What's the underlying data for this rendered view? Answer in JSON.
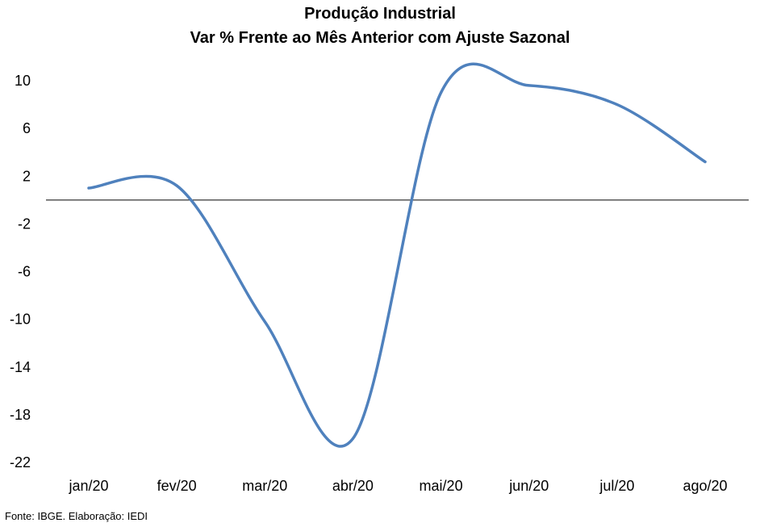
{
  "chart_data": {
    "type": "line",
    "title": "Produção Industrial",
    "subtitle": "Var % Frente ao Mês Anterior com Ajuste Sazonal",
    "xlabel": "",
    "ylabel": "",
    "categories": [
      "jan/20",
      "fev/20",
      "mar/20",
      "abr/20",
      "mai/20",
      "jun/20",
      "jul/20",
      "ago/20"
    ],
    "series": [
      {
        "values": [
          1.0,
          1.2,
          -10.2,
          -20.0,
          9.0,
          9.6,
          8.0,
          3.2
        ]
      }
    ],
    "ylim": [
      -22,
      10
    ],
    "yticks": [
      10,
      6,
      2,
      -2,
      -6,
      -10,
      -14,
      -18,
      -22
    ],
    "grid": false,
    "legend": "none",
    "line_color": "#4F81BD",
    "zero_line_color": "#000000"
  },
  "source": "Fonte: IBGE. Elaboração: IEDI"
}
